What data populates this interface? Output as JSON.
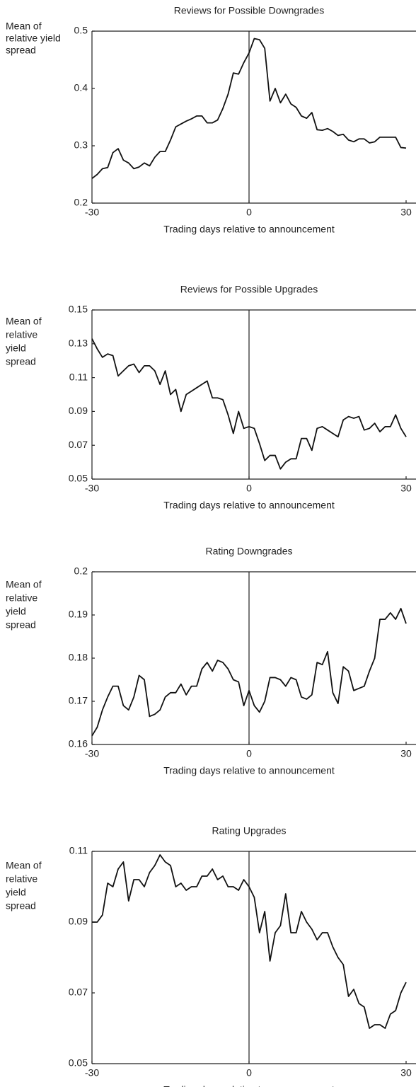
{
  "chart_data": [
    {
      "type": "line",
      "title": "Reviews for Possible Downgrades",
      "ylabel": [
        "Mean of",
        "relative yield",
        "spread"
      ],
      "xlabel": "Trading days relative to announcement",
      "x": [
        -30,
        -29,
        -28,
        -27,
        -26,
        -25,
        -24,
        -23,
        -22,
        -21,
        -20,
        -19,
        -18,
        -17,
        -16,
        -15,
        -14,
        -13,
        -12,
        -11,
        -10,
        -9,
        -8,
        -7,
        -6,
        -5,
        -4,
        -3,
        -2,
        -1,
        0,
        1,
        2,
        3,
        4,
        5,
        6,
        7,
        8,
        9,
        10,
        11,
        12,
        13,
        14,
        15,
        16,
        17,
        18,
        19,
        20,
        21,
        22,
        23,
        24,
        25,
        26,
        27,
        28,
        29,
        30
      ],
      "series": [
        {
          "color": "#111111",
          "values": [
            0.243,
            0.25,
            0.26,
            0.262,
            0.288,
            0.295,
            0.275,
            0.27,
            0.26,
            0.263,
            0.27,
            0.265,
            0.28,
            0.29,
            0.29,
            0.31,
            0.333,
            0.338,
            0.343,
            0.347,
            0.352,
            0.352,
            0.34,
            0.34,
            0.345,
            0.365,
            0.39,
            0.427,
            0.425,
            0.445,
            0.462,
            0.487,
            0.485,
            0.47,
            0.378,
            0.4,
            0.375,
            0.39,
            0.373,
            0.367,
            0.352,
            0.348,
            0.358,
            0.328,
            0.327,
            0.33,
            0.325,
            0.318,
            0.32,
            0.31,
            0.307,
            0.312,
            0.312,
            0.305,
            0.307,
            0.315,
            0.315,
            0.315,
            0.315,
            0.297,
            0.296
          ]
        }
      ],
      "xlim": [
        -30,
        30
      ],
      "xticks": [
        -30,
        0,
        30
      ],
      "ylim": [
        0.2,
        0.5
      ],
      "yticks": [
        0.2,
        0.3,
        0.4,
        0.5
      ],
      "reference_line_x": 0
    },
    {
      "type": "line",
      "title": "Reviews for Possible Upgrades",
      "ylabel": [
        "Mean of",
        "relative",
        "yield",
        "spread"
      ],
      "xlabel": "Trading days relative to announcement",
      "x": [
        -30,
        -29,
        -28,
        -27,
        -26,
        -25,
        -24,
        -23,
        -22,
        -21,
        -20,
        -19,
        -18,
        -17,
        -16,
        -15,
        -14,
        -13,
        -12,
        -11,
        -10,
        -9,
        -8,
        -7,
        -6,
        -5,
        -4,
        -3,
        -2,
        -1,
        0,
        1,
        2,
        3,
        4,
        5,
        6,
        7,
        8,
        9,
        10,
        11,
        12,
        13,
        14,
        15,
        16,
        17,
        18,
        19,
        20,
        21,
        22,
        23,
        24,
        25,
        26,
        27,
        28,
        29,
        30
      ],
      "series": [
        {
          "color": "#111111",
          "values": [
            0.133,
            0.127,
            0.122,
            0.124,
            0.123,
            0.111,
            0.114,
            0.117,
            0.118,
            0.113,
            0.117,
            0.117,
            0.114,
            0.106,
            0.114,
            0.1,
            0.103,
            0.09,
            0.1,
            0.102,
            0.104,
            0.106,
            0.108,
            0.098,
            0.098,
            0.097,
            0.088,
            0.077,
            0.09,
            0.08,
            0.081,
            0.08,
            0.071,
            0.061,
            0.064,
            0.064,
            0.056,
            0.06,
            0.062,
            0.062,
            0.074,
            0.074,
            0.067,
            0.08,
            0.081,
            0.079,
            0.077,
            0.075,
            0.085,
            0.087,
            0.086,
            0.087,
            0.079,
            0.08,
            0.083,
            0.078,
            0.081,
            0.081,
            0.088,
            0.08,
            0.075
          ]
        }
      ],
      "xlim": [
        -30,
        30
      ],
      "xticks": [
        -30,
        0,
        30
      ],
      "ylim": [
        0.05,
        0.15
      ],
      "yticks": [
        0.05,
        0.07,
        0.09,
        0.11,
        0.13,
        0.15
      ],
      "reference_line_x": 0
    },
    {
      "type": "line",
      "title": "Rating Downgrades",
      "ylabel": [
        "Mean of",
        "relative",
        "yield",
        "spread"
      ],
      "xlabel": "Trading days relative to announcement",
      "x": [
        -30,
        -29,
        -28,
        -27,
        -26,
        -25,
        -24,
        -23,
        -22,
        -21,
        -20,
        -19,
        -18,
        -17,
        -16,
        -15,
        -14,
        -13,
        -12,
        -11,
        -10,
        -9,
        -8,
        -7,
        -6,
        -5,
        -4,
        -3,
        -2,
        -1,
        0,
        1,
        2,
        3,
        4,
        5,
        6,
        7,
        8,
        9,
        10,
        11,
        12,
        13,
        14,
        15,
        16,
        17,
        18,
        19,
        20,
        21,
        22,
        23,
        24,
        25,
        26,
        27,
        28,
        29,
        30
      ],
      "series": [
        {
          "color": "#111111",
          "values": [
            0.162,
            0.164,
            0.168,
            0.171,
            0.1735,
            0.1735,
            0.169,
            0.168,
            0.171,
            0.176,
            0.175,
            0.1665,
            0.167,
            0.168,
            0.171,
            0.172,
            0.172,
            0.174,
            0.1715,
            0.1735,
            0.1735,
            0.1775,
            0.179,
            0.177,
            0.1795,
            0.179,
            0.1775,
            0.175,
            0.1745,
            0.169,
            0.1725,
            0.169,
            0.1675,
            0.17,
            0.1755,
            0.1755,
            0.175,
            0.1735,
            0.1755,
            0.175,
            0.171,
            0.1705,
            0.1715,
            0.179,
            0.1785,
            0.1815,
            0.172,
            0.1695,
            0.178,
            0.177,
            0.1725,
            0.173,
            0.1735,
            0.177,
            0.18,
            0.189,
            0.189,
            0.1905,
            0.189,
            0.1915,
            0.188
          ]
        }
      ],
      "xlim": [
        -30,
        30
      ],
      "xticks": [
        -30,
        0,
        30
      ],
      "ylim": [
        0.16,
        0.2
      ],
      "yticks": [
        0.16,
        0.17,
        0.18,
        0.19,
        0.2
      ],
      "reference_line_x": 0
    },
    {
      "type": "line",
      "title": "Rating Upgrades",
      "ylabel": [
        "Mean of",
        "relative",
        "yield",
        "spread"
      ],
      "xlabel": "Trading days relative to announcement",
      "x": [
        -30,
        -29,
        -28,
        -27,
        -26,
        -25,
        -24,
        -23,
        -22,
        -21,
        -20,
        -19,
        -18,
        -17,
        -16,
        -15,
        -14,
        -13,
        -12,
        -11,
        -10,
        -9,
        -8,
        -7,
        -6,
        -5,
        -4,
        -3,
        -2,
        -1,
        0,
        1,
        2,
        3,
        4,
        5,
        6,
        7,
        8,
        9,
        10,
        11,
        12,
        13,
        14,
        15,
        16,
        17,
        18,
        19,
        20,
        21,
        22,
        23,
        24,
        25,
        26,
        27,
        28,
        29,
        30
      ],
      "series": [
        {
          "color": "#111111",
          "values": [
            0.09,
            0.09,
            0.092,
            0.101,
            0.1,
            0.105,
            0.107,
            0.096,
            0.102,
            0.102,
            0.1,
            0.104,
            0.106,
            0.109,
            0.107,
            0.106,
            0.1,
            0.101,
            0.099,
            0.1,
            0.1,
            0.103,
            0.103,
            0.105,
            0.102,
            0.103,
            0.1,
            0.1,
            0.099,
            0.102,
            0.1,
            0.097,
            0.087,
            0.093,
            0.079,
            0.087,
            0.089,
            0.098,
            0.087,
            0.087,
            0.093,
            0.09,
            0.088,
            0.085,
            0.087,
            0.087,
            0.083,
            0.08,
            0.078,
            0.069,
            0.071,
            0.067,
            0.066,
            0.06,
            0.061,
            0.061,
            0.06,
            0.064,
            0.065,
            0.07,
            0.073
          ]
        }
      ],
      "xlim": [
        -30,
        30
      ],
      "xticks": [
        -30,
        0,
        30
      ],
      "ylim": [
        0.05,
        0.11
      ],
      "yticks": [
        0.05,
        0.07,
        0.09,
        0.11
      ],
      "reference_line_x": 0
    }
  ]
}
